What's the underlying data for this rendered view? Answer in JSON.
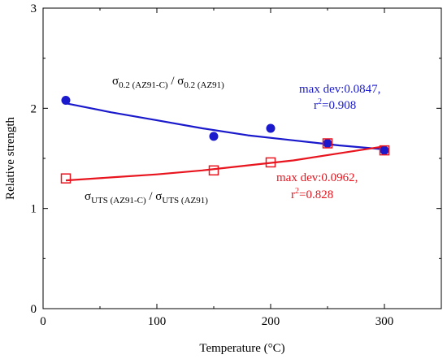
{
  "chart_data": {
    "type": "scatter",
    "xlabel": "Temperature (°C)",
    "ylabel": "Relative strength",
    "xlim": [
      0,
      350
    ],
    "ylim": [
      0,
      3
    ],
    "x_ticks": [
      0,
      100,
      200,
      300
    ],
    "x_tick_labels": [
      "0",
      "100",
      "200",
      "300"
    ],
    "y_ticks": [
      0,
      1,
      2,
      3
    ],
    "y_tick_labels": [
      "0",
      "1",
      "2",
      "3"
    ],
    "grid": false,
    "series": [
      {
        "key": "yield",
        "color": "#1a1acc",
        "marker": "filled-circle",
        "points": [
          {
            "x": 20,
            "y": 2.08
          },
          {
            "x": 150,
            "y": 1.72
          },
          {
            "x": 200,
            "y": 1.8
          },
          {
            "x": 250,
            "y": 1.65
          },
          {
            "x": 300,
            "y": 1.58
          }
        ],
        "fit": {
          "x": [
            20,
            60,
            100,
            140,
            180,
            220,
            260,
            300
          ],
          "y": [
            2.05,
            1.96,
            1.88,
            1.8,
            1.73,
            1.68,
            1.63,
            1.59
          ]
        },
        "label": {
          "sigma": "σ",
          "sub1": "0.2 (AZ91-C)",
          "slash": " / ",
          "sigma2": "σ",
          "sub2": "0.2 (AZ91)"
        },
        "stats": {
          "maxdev": "max dev:0.0847,",
          "r2_prefix": "r",
          "r2_exp": "2",
          "r2_value": "=0.908"
        }
      },
      {
        "key": "uts",
        "color": "#e8141e",
        "marker": "open-square",
        "points": [
          {
            "x": 20,
            "y": 1.3
          },
          {
            "x": 150,
            "y": 1.38
          },
          {
            "x": 200,
            "y": 1.46
          },
          {
            "x": 250,
            "y": 1.65
          },
          {
            "x": 300,
            "y": 1.58
          }
        ],
        "fit": {
          "x": [
            20,
            60,
            100,
            140,
            180,
            220,
            260,
            300
          ],
          "y": [
            1.28,
            1.31,
            1.34,
            1.38,
            1.43,
            1.48,
            1.55,
            1.62
          ]
        },
        "label": {
          "sigma": "σ",
          "sub1": "UTS (AZ91-C)",
          "slash": " / ",
          "sigma2": "σ",
          "sub2": "UTS (AZ91)"
        },
        "stats": {
          "maxdev": "max dev:0.0962,",
          "r2_prefix": "r",
          "r2_exp": "2",
          "r2_value": "=0.828"
        }
      }
    ]
  }
}
